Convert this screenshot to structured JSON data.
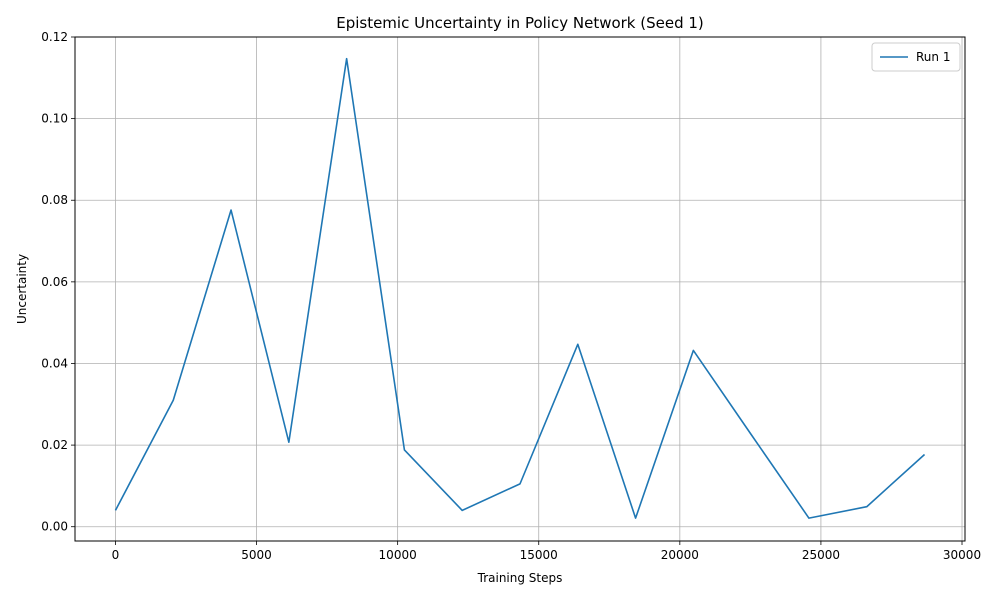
{
  "chart_data": {
    "type": "line",
    "title": "Epistemic Uncertainty in Policy Network (Seed 1)",
    "xlabel": "Training Steps",
    "ylabel": "Uncertainty",
    "xlim": [
      -1434,
      30106
    ],
    "ylim": [
      -0.0035,
      0.12
    ],
    "xticks": [
      0,
      5000,
      10000,
      15000,
      20000,
      25000,
      30000
    ],
    "xtick_labels": [
      "0",
      "5000",
      "10000",
      "15000",
      "20000",
      "25000",
      "30000"
    ],
    "yticks": [
      0.0,
      0.02,
      0.04,
      0.06,
      0.08,
      0.1,
      0.12
    ],
    "ytick_labels": [
      "0.00",
      "0.02",
      "0.04",
      "0.06",
      "0.08",
      "0.10",
      "0.12"
    ],
    "grid": true,
    "legend_position": "top-right",
    "series": [
      {
        "name": "Run 1",
        "color": "#1f77b4",
        "x": [
          0,
          2048,
          4096,
          6144,
          8192,
          10240,
          12288,
          14336,
          16384,
          18432,
          20480,
          22528,
          24576,
          26624,
          28672
        ],
        "y": [
          0.004,
          0.031,
          0.0776,
          0.0207,
          0.1147,
          0.0188,
          0.004,
          0.0105,
          0.0447,
          0.0021,
          0.0432,
          0.0226,
          0.0021,
          0.0049,
          0.0177
        ]
      }
    ]
  }
}
